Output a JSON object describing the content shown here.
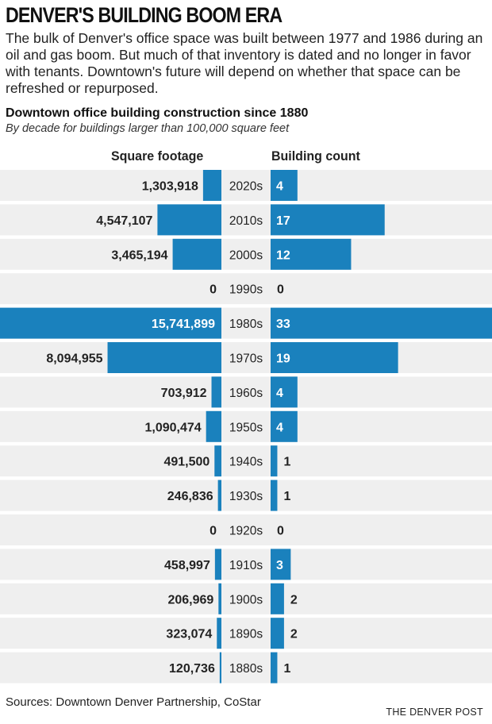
{
  "header": {
    "title": "DENVER'S BUILDING BOOM ERA",
    "intro": "The bulk of Denver's office space was built between 1977 and 1986 during an oil and gas boom. But much of that inventory is dated and no longer in favor with tenants. Downtown's future will depend on whether that space can be refreshed or repurposed."
  },
  "colors": {
    "bar": "#1a81bd",
    "row_band": "#efefef",
    "label_dark": "#222222",
    "label_on_bar": "#ffffff"
  },
  "chart_data": {
    "type": "bar",
    "title": "Downtown office building construction since 1880",
    "subtitle": "By decade for buildings larger than 100,000 square feet",
    "categories": [
      "2020s",
      "2010s",
      "2000s",
      "1990s",
      "1980s",
      "1970s",
      "1960s",
      "1950s",
      "1940s",
      "1930s",
      "1920s",
      "1910s",
      "1900s",
      "1890s",
      "1880s"
    ],
    "series": [
      {
        "name": "Square footage",
        "values": [
          1303918,
          4547107,
          3465194,
          0,
          15741899,
          8094955,
          703912,
          1090474,
          491500,
          246836,
          0,
          458997,
          206969,
          323074,
          120736
        ],
        "labels": [
          "1,303,918",
          "4,547,107",
          "3,465,194",
          "0",
          "15,741,899",
          "8,094,955",
          "703,912",
          "1,090,474",
          "491,500",
          "246,836",
          "0",
          "458,997",
          "206,969",
          "323,074",
          "120,736"
        ]
      },
      {
        "name": "Building count",
        "values": [
          4,
          17,
          12,
          0,
          33,
          19,
          4,
          4,
          1,
          1,
          0,
          3,
          2,
          2,
          1
        ],
        "labels": [
          "4",
          "17",
          "12",
          "0",
          "33",
          "19",
          "4",
          "4",
          "1",
          "1",
          "0",
          "3",
          "2",
          "2",
          "1"
        ]
      }
    ],
    "legend": "column headers",
    "grid": false
  },
  "footer": {
    "source": "Sources: Downtown Denver Partnership, CoStar",
    "brand": "THE DENVER POST"
  }
}
